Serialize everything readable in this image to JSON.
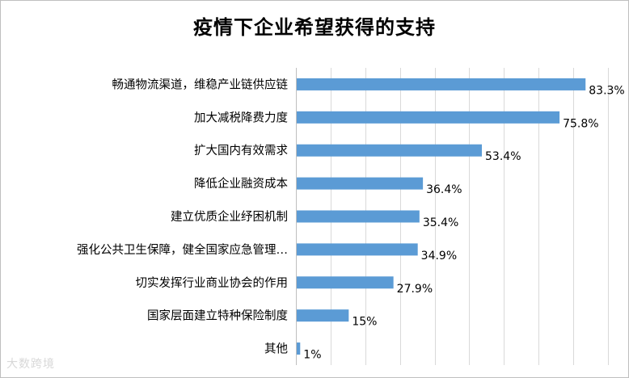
{
  "chart_data": {
    "type": "bar",
    "orientation": "horizontal",
    "title": "疫情下企业希望获得的支持",
    "categories": [
      "畅通物流渠道，维稳产业链供应链",
      "加大减税降费力度",
      "扩大国内有效需求",
      "降低企业融资成本",
      "建立优质企业纾困机制",
      "强化公共卫生保障，健全国家应急管理…",
      "切实发挥行业商业协会的作用",
      "国家层面建立特种保险制度",
      "其他"
    ],
    "values": [
      83.3,
      75.8,
      53.4,
      36.4,
      35.4,
      34.9,
      27.9,
      15,
      1
    ],
    "value_labels": [
      "83.3%",
      "75.8%",
      "53.4%",
      "36.4%",
      "35.4%",
      "34.9%",
      "27.9%",
      "15%",
      "1%"
    ],
    "unit": "%",
    "xlim": [
      0,
      90
    ],
    "grid": true,
    "bar_color": "#5b9bd5",
    "grid_color": "#d9d9d9"
  },
  "watermark": "大数跨境"
}
